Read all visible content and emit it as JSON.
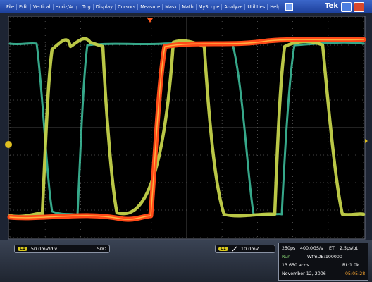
{
  "menu": [
    "File",
    "Edit",
    "Vertical",
    "Horiz/Acq",
    "Trig",
    "Display",
    "Cursors",
    "Measure",
    "Mask",
    "Math",
    "MyScope",
    "Analyze",
    "Utilities",
    "Help"
  ],
  "brand": "Tek",
  "channel": {
    "badge": "C1",
    "scale": "50.0mV/div",
    "impedance": "50Ω"
  },
  "trigger": {
    "badge": "C1",
    "level": "10.0mV"
  },
  "status": {
    "timebase": "250ps",
    "sample_rate": "400.0GS/s",
    "mode": "ET",
    "resolution": "2.5ps/pt",
    "state": "Run",
    "database": "WfmDB:100000",
    "acquisitions": "13 650 acqs",
    "record_length": "RL:1.0k",
    "date": "November 12, 2006",
    "time": "05:05:28"
  }
}
